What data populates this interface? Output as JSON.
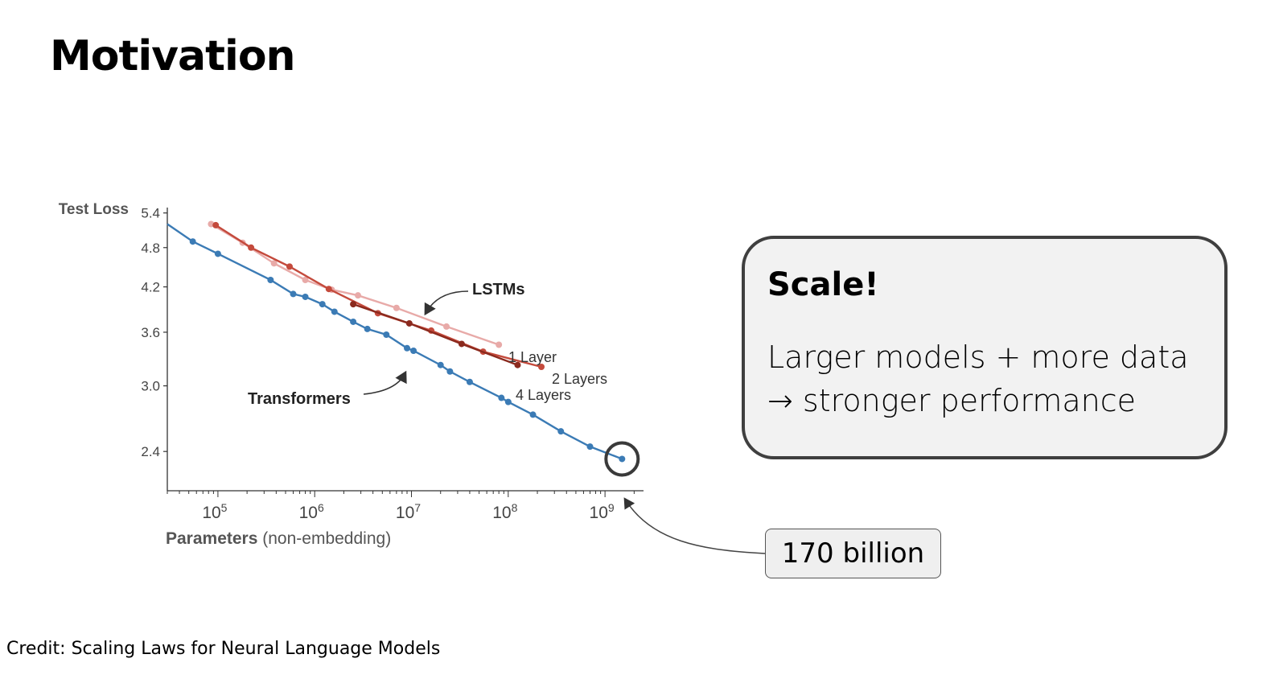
{
  "slide": {
    "title": "Motivation",
    "credit": "Credit: Scaling Laws for Neural Language Models"
  },
  "scale_box": {
    "title": "Scale!",
    "line1": "Larger models + more data",
    "line2": "→ stronger performance"
  },
  "callout": {
    "label": "170 billion"
  },
  "colors": {
    "transformers": "#3b7bb5",
    "lstm_1": "#e8aaa8",
    "lstm_2": "#c44a3c",
    "lstm_4": "#8b2a1e",
    "axis": "#333333",
    "annotation": "#333333"
  },
  "chart_data": {
    "type": "line",
    "xscale": "log",
    "yscale": "log",
    "xlim": [
      30000,
      2500000000
    ],
    "ylim": [
      2.1,
      5.5
    ],
    "xlabel_bold": "Parameters",
    "xlabel_rest": " (non-embedding)",
    "ylabel": "Test Loss",
    "x_ticks": [
      {
        "value": 100000,
        "base": "10",
        "exp": "5"
      },
      {
        "value": 1000000,
        "base": "10",
        "exp": "6"
      },
      {
        "value": 10000000,
        "base": "10",
        "exp": "7"
      },
      {
        "value": 100000000,
        "base": "10",
        "exp": "8"
      },
      {
        "value": 1000000000,
        "base": "10",
        "exp": "9"
      }
    ],
    "y_ticks": [
      {
        "value": 2.4,
        "label": "2.4"
      },
      {
        "value": 3.0,
        "label": "3.0"
      },
      {
        "value": 3.6,
        "label": "3.6"
      },
      {
        "value": 4.2,
        "label": "4.2"
      },
      {
        "value": 4.8,
        "label": "4.8"
      },
      {
        "value": 5.4,
        "label": "5.4"
      }
    ],
    "series": [
      {
        "id": "transformers",
        "color": "#3b7bb5",
        "points": [
          [
            55000,
            4.9
          ],
          [
            100000,
            4.7
          ],
          [
            350000,
            4.3
          ],
          [
            600000,
            4.1
          ],
          [
            800000,
            4.06
          ],
          [
            1200000,
            3.96
          ],
          [
            1600000,
            3.86
          ],
          [
            2500000,
            3.73
          ],
          [
            3500000,
            3.64
          ],
          [
            5500000,
            3.57
          ],
          [
            9000000,
            3.41
          ],
          [
            10500000,
            3.38
          ],
          [
            20000000,
            3.22
          ],
          [
            25000000,
            3.15
          ],
          [
            40000000,
            3.04
          ],
          [
            85000000,
            2.88
          ],
          [
            100000000,
            2.84
          ],
          [
            180000000,
            2.72
          ],
          [
            350000000,
            2.57
          ],
          [
            700000000,
            2.44
          ],
          [
            1500000000,
            2.34
          ]
        ],
        "line_start": [
          30000,
          5.2
        ]
      },
      {
        "id": "lstm_1",
        "color": "#e8aaa8",
        "points": [
          [
            85000,
            5.2
          ],
          [
            180000,
            4.88
          ],
          [
            380000,
            4.55
          ],
          [
            800000,
            4.3
          ],
          [
            1500000,
            4.16
          ],
          [
            2800000,
            4.08
          ],
          [
            7000000,
            3.91
          ],
          [
            23000000,
            3.67
          ],
          [
            80000000,
            3.45
          ]
        ]
      },
      {
        "id": "lstm_2",
        "color": "#c44a3c",
        "points": [
          [
            95000,
            5.18
          ],
          [
            220000,
            4.8
          ],
          [
            550000,
            4.5
          ],
          [
            1400000,
            4.17
          ],
          [
            4500000,
            3.84
          ],
          [
            16000000,
            3.62
          ],
          [
            55000000,
            3.37
          ],
          [
            220000000,
            3.2
          ]
        ]
      },
      {
        "id": "lstm_4",
        "color": "#8b2a1e",
        "points": [
          [
            2500000,
            3.96
          ],
          [
            9500000,
            3.71
          ],
          [
            33000000,
            3.46
          ],
          [
            125000000,
            3.22
          ]
        ]
      }
    ],
    "annotations": [
      {
        "id": "lstms",
        "text": "LSTMs",
        "bold": true
      },
      {
        "id": "transformers",
        "text": "Transformers",
        "bold": true
      },
      {
        "id": "1layer",
        "text": "1 Layer",
        "bold": false
      },
      {
        "id": "2layers",
        "text": "2 Layers",
        "bold": false
      },
      {
        "id": "4layers",
        "text": "4 Layers",
        "bold": false
      }
    ]
  }
}
